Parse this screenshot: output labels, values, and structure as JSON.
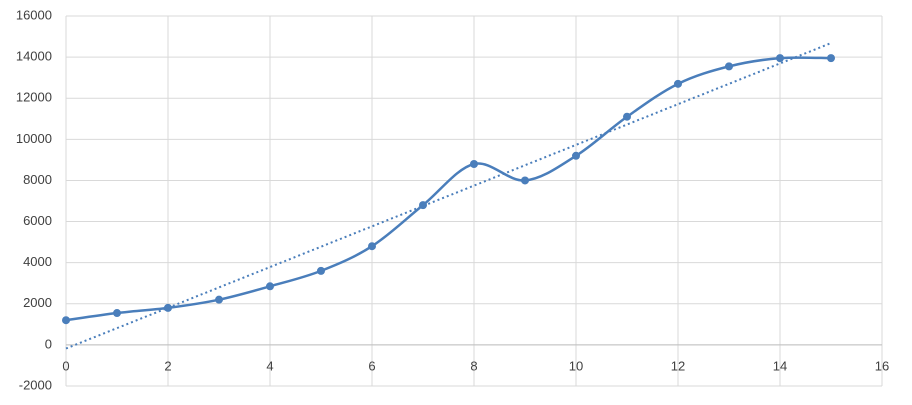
{
  "chart_data": {
    "type": "scatter",
    "smooth": true,
    "trendline": "linear",
    "grid": true,
    "color": "#4a7ebb",
    "x": [
      0,
      1,
      2,
      3,
      4,
      5,
      6,
      7,
      8,
      9,
      10,
      11,
      12,
      13,
      14,
      15
    ],
    "values": [
      1200,
      1550,
      1800,
      2200,
      2850,
      3600,
      4800,
      6800,
      8800,
      8000,
      9200,
      11100,
      12700,
      13550,
      13950,
      13950
    ],
    "xlim": [
      0,
      16
    ],
    "xticks": [
      0,
      2,
      4,
      6,
      8,
      10,
      12,
      14,
      16
    ],
    "ylim": [
      -2000,
      16000
    ],
    "yticks": [
      -2000,
      0,
      2000,
      4000,
      6000,
      8000,
      10000,
      12000,
      14000,
      16000
    ]
  }
}
